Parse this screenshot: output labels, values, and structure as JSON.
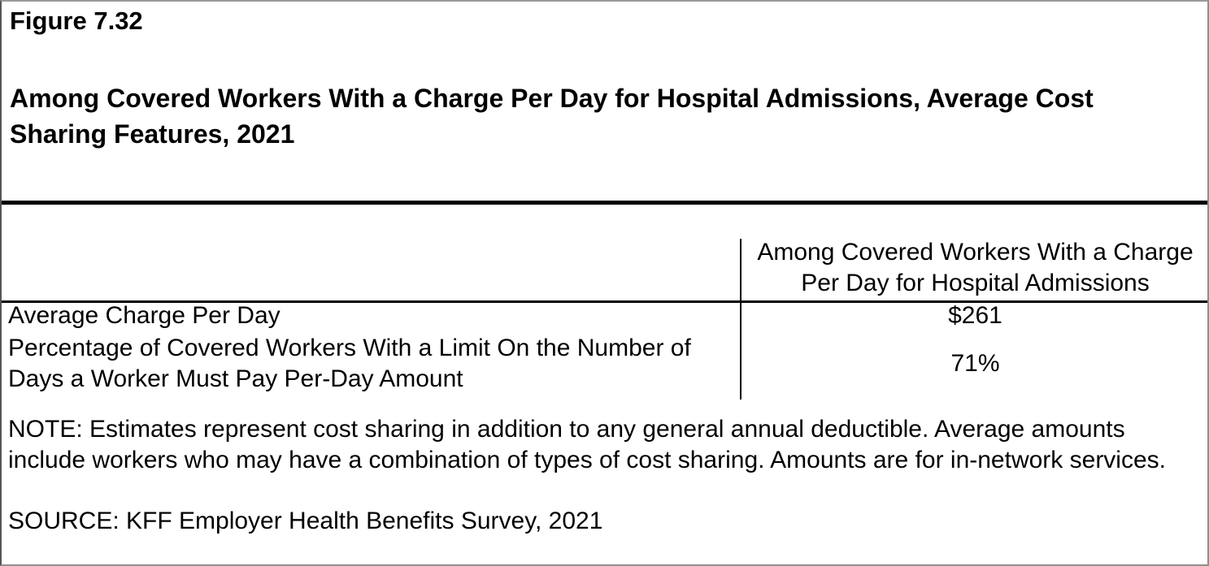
{
  "figure": {
    "label": "Figure 7.32",
    "title": "Among Covered Workers With a Charge Per Day for Hospital Admissions, Average Cost Sharing Features, 2021"
  },
  "table": {
    "column_header": "Among Covered Workers With a Charge Per Day for Hospital Admissions",
    "rows": [
      {
        "label": "Average Charge Per Day",
        "value": "$261"
      },
      {
        "label": "Percentage of Covered Workers With a Limit On the Number of Days a Worker Must Pay Per-Day Amount",
        "value": "71%"
      }
    ]
  },
  "note": "NOTE: Estimates represent cost sharing in addition to any general annual deductible. Average amounts include workers who may have a combination of types of cost sharing. Amounts are for in-network services.",
  "source": "SOURCE: KFF Employer Health Benefits Survey, 2021",
  "colors": {
    "text": "#000000",
    "rule": "#000000",
    "page_border": "#8f8f8f",
    "background": "#ffffff"
  }
}
